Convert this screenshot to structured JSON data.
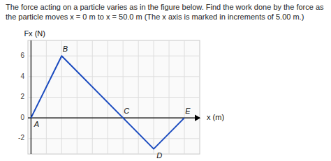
{
  "chart_data": {
    "type": "line",
    "title": "The force acting on a particle varies as in the figure below. Find the work done by the force as the particle moves x = 0 m to x = 50.0 m (The x axis is marked in increments of 5.00 m.)",
    "x_label": "x (m)",
    "y_label": "Fx (N)",
    "x": [
      0,
      10,
      30,
      40,
      50
    ],
    "values": [
      0,
      6,
      0,
      -3,
      0
    ],
    "color": "#1a4abf",
    "xlim": [
      -1,
      55
    ],
    "ylim": [
      -3.5,
      7.5
    ],
    "xticks": [
      0,
      5,
      10,
      15,
      20,
      25,
      30,
      35,
      40,
      45,
      50
    ],
    "yticks": [
      -2,
      0,
      2,
      4,
      6
    ],
    "grid": true,
    "tick_labels": "y",
    "annotations": [
      {
        "text": "A",
        "x": 0,
        "y": 0
      },
      {
        "text": "B",
        "x": 10,
        "y": 6
      },
      {
        "text": "C",
        "x": 30,
        "y": 0
      },
      {
        "text": "D",
        "x": 40,
        "y": -3
      },
      {
        "text": "E",
        "x": 50,
        "y": 0
      }
    ]
  }
}
